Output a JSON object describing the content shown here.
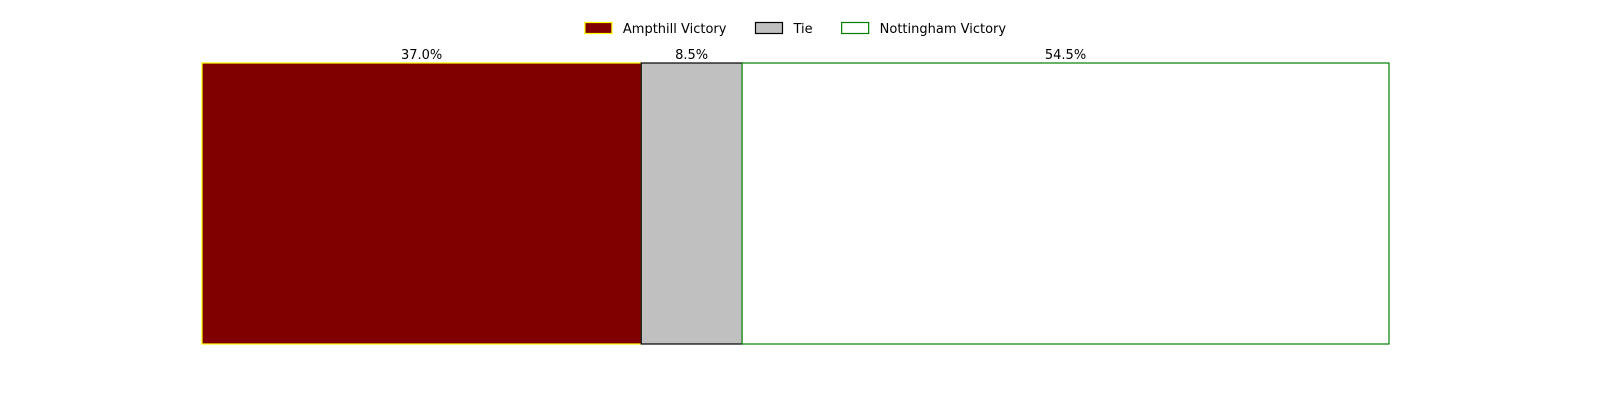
{
  "chart_data": {
    "type": "bar",
    "orientation": "horizontal",
    "stacked": true,
    "percent": true,
    "xlim": [
      0,
      100
    ],
    "grid": false,
    "axes_visible": false,
    "legend_position": "top-center",
    "series": [
      {
        "name": "Ampthill Victory",
        "value": 37.0,
        "label": "37.0%",
        "fill": "#800000",
        "stroke": "#ffff00"
      },
      {
        "name": "Tie",
        "value": 8.5,
        "label": "8.5%",
        "fill": "#c0c0c0",
        "stroke": "#000000"
      },
      {
        "name": "Nottingham Victory",
        "value": 54.5,
        "label": "54.5%",
        "fill": "#ffffff",
        "stroke": "#008000"
      }
    ]
  }
}
